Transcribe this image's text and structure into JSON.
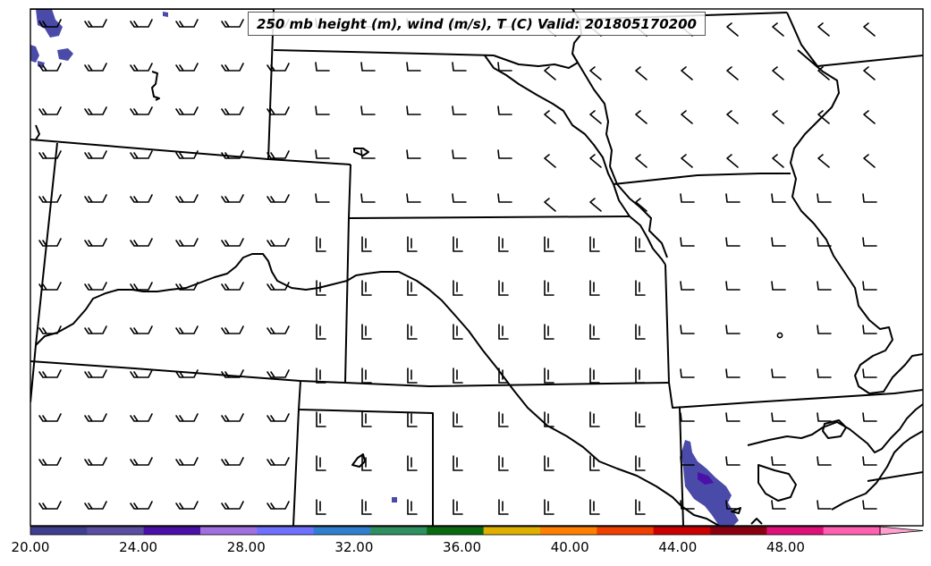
{
  "title": "250 mb height (m), wind (m/s), T (C) Valid: 201805170200",
  "colorbar": {
    "tick_labels": [
      "20.00",
      "24.00",
      "28.00",
      "32.00",
      "36.00",
      "40.00",
      "44.00",
      "48.00"
    ],
    "tick_values": [
      20,
      24,
      28,
      32,
      36,
      40,
      44,
      48
    ],
    "range": [
      20,
      51.5
    ],
    "extend": "max",
    "colors": [
      "#3f3f8f",
      "#5b4ea0",
      "#4a10a8",
      "#a070e0",
      "#7070ff",
      "#2f7fd0",
      "#2e9060",
      "#0a6a10",
      "#e0b000",
      "#ff8000",
      "#f04000",
      "#cc0000",
      "#8b0010",
      "#e0107a",
      "#ff60b0",
      "#ffa0d0"
    ]
  },
  "shading_color": "#4a4aa8"
}
